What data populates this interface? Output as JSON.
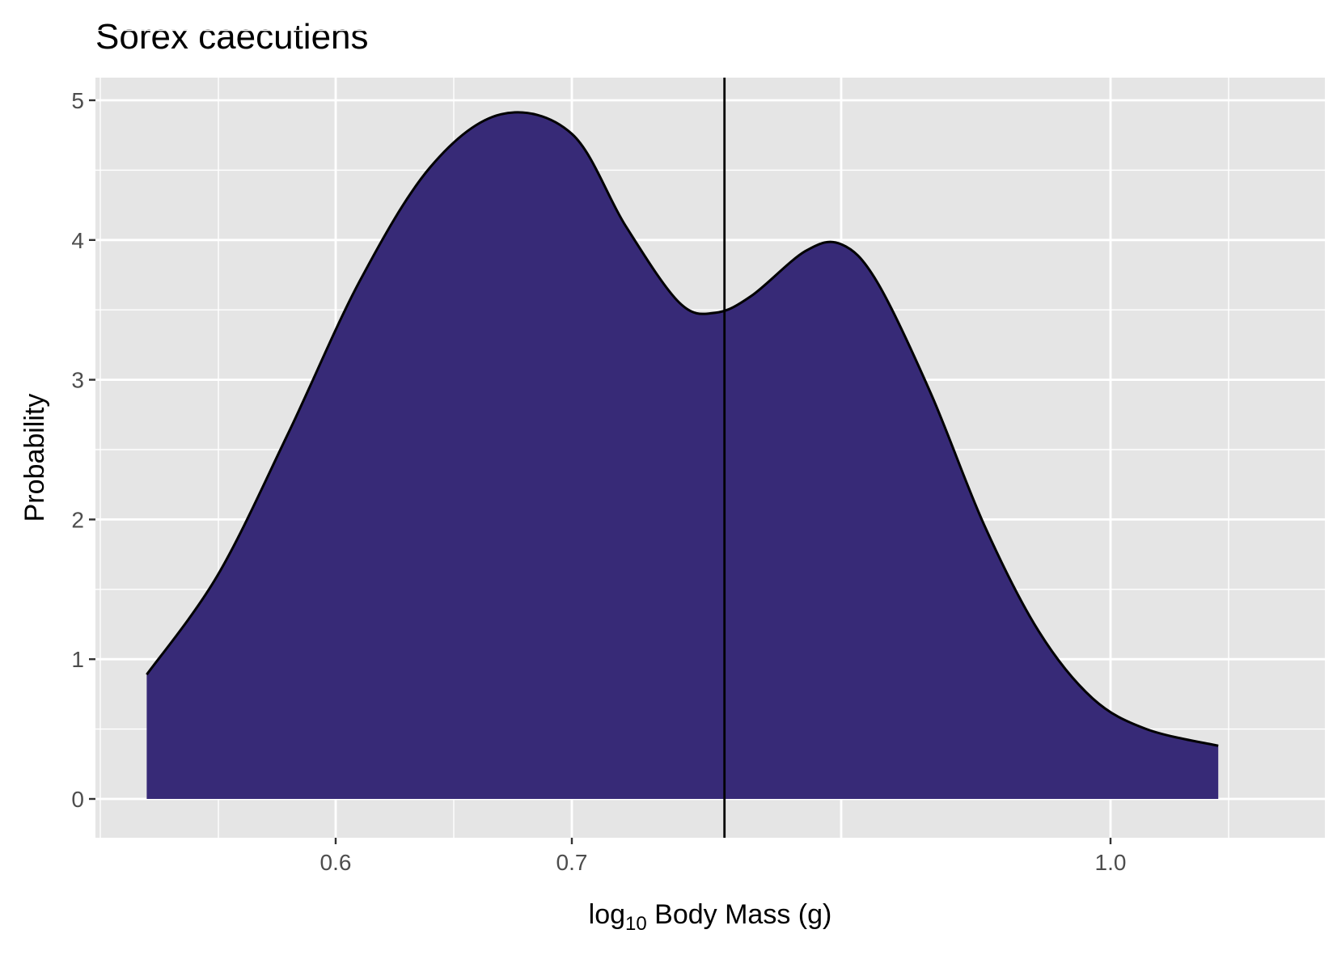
{
  "chart_data": {
    "type": "area",
    "title": "Sorex caecutiens",
    "xlabel": {
      "prefix": "log",
      "subscript": "10",
      "suffix": " Body Mass (g)"
    },
    "ylabel": "Probability",
    "x_tick_labels": [
      "0.6",
      "0.7",
      "1.0"
    ],
    "y_tick_labels": [
      "0",
      "1",
      "2",
      "3",
      "4",
      "5"
    ],
    "grid": true,
    "panel_background": "#e5e5e5",
    "grid_color": "#ffffff",
    "fill_color": "#372a77",
    "line_color": "#000000",
    "series": [
      {
        "points": [
          [
            0.52,
            0.89
          ],
          [
            0.55,
            1.6
          ],
          [
            0.58,
            2.62
          ],
          [
            0.61,
            3.7
          ],
          [
            0.64,
            4.52
          ],
          [
            0.67,
            4.9
          ],
          [
            0.7,
            4.76
          ],
          [
            0.73,
            4.1
          ],
          [
            0.76,
            3.55
          ],
          [
            0.78,
            3.48
          ],
          [
            0.8,
            3.6
          ],
          [
            0.83,
            3.92
          ],
          [
            0.85,
            3.97
          ],
          [
            0.87,
            3.7
          ],
          [
            0.9,
            2.9
          ],
          [
            0.93,
            1.95
          ],
          [
            0.96,
            1.2
          ],
          [
            0.99,
            0.72
          ],
          [
            1.02,
            0.5
          ],
          [
            1.06,
            0.38
          ]
        ]
      }
    ],
    "vline_x": 0.785
  }
}
